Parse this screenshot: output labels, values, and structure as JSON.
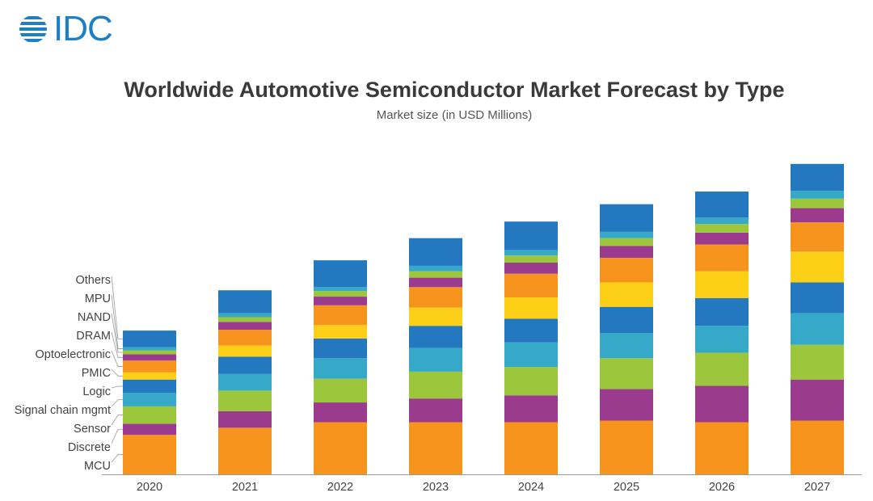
{
  "logo": {
    "text": "IDC"
  },
  "colors": {
    "MCU": "#f7941d",
    "Discrete": "#9b3b8e",
    "Sensor": "#9cc73c",
    "Signal chain mgmt": "#36a9c9",
    "Logic": "#2478c0",
    "PMIC": "#fdd017",
    "Optoelectronic": "#f7941d",
    "DRAM": "#9b3b8e",
    "NAND": "#9cc73c",
    "MPU": "#36a9c9",
    "Others": "#2478c0"
  },
  "chart_data": {
    "type": "bar",
    "stacked": true,
    "title": "Worldwide Automotive Semiconductor Market Forecast by Type",
    "subtitle": "Market size (in USD Millions)",
    "xlabel": "",
    "ylabel": "",
    "categories": [
      "2020",
      "2021",
      "2022",
      "2023",
      "2024",
      "2025",
      "2026",
      "2027"
    ],
    "legend_position": "left",
    "legend_order_top_to_bottom": [
      "Others",
      "MPU",
      "NAND",
      "DRAM",
      "Optoelectronic",
      "PMIC",
      "Logic",
      "Signal chain mgmt",
      "Sensor",
      "Discrete",
      "MCU"
    ],
    "series": [
      {
        "name": "MCU",
        "values": [
          50,
          59,
          66,
          66,
          66,
          68,
          66,
          68
        ]
      },
      {
        "name": "Discrete",
        "values": [
          14,
          21,
          25,
          30,
          34,
          40,
          46,
          52
        ]
      },
      {
        "name": "Sensor",
        "values": [
          22,
          26,
          30,
          34,
          36,
          39,
          42,
          44
        ]
      },
      {
        "name": "Signal chain mgmt",
        "values": [
          17,
          21,
          26,
          30,
          31,
          32,
          34,
          40
        ]
      },
      {
        "name": "Logic",
        "values": [
          17,
          22,
          25,
          28,
          30,
          33,
          35,
          39
        ]
      },
      {
        "name": "PMIC",
        "values": [
          9,
          14,
          17,
          23,
          27,
          31,
          34,
          39
        ]
      },
      {
        "name": "Optoelectronic",
        "values": [
          15,
          20,
          25,
          26,
          30,
          31,
          34,
          37
        ]
      },
      {
        "name": "DRAM",
        "values": [
          8,
          10,
          11,
          12,
          14,
          15,
          15,
          18
        ]
      },
      {
        "name": "NAND",
        "values": [
          5,
          6,
          7,
          8,
          9,
          10,
          11,
          12
        ]
      },
      {
        "name": "MPU",
        "values": [
          4,
          5,
          5,
          7,
          7,
          8,
          8,
          10
        ]
      },
      {
        "name": "Others",
        "values": [
          21,
          29,
          34,
          35,
          36,
          35,
          33,
          34
        ]
      }
    ],
    "ylim": [
      0,
      400
    ]
  }
}
